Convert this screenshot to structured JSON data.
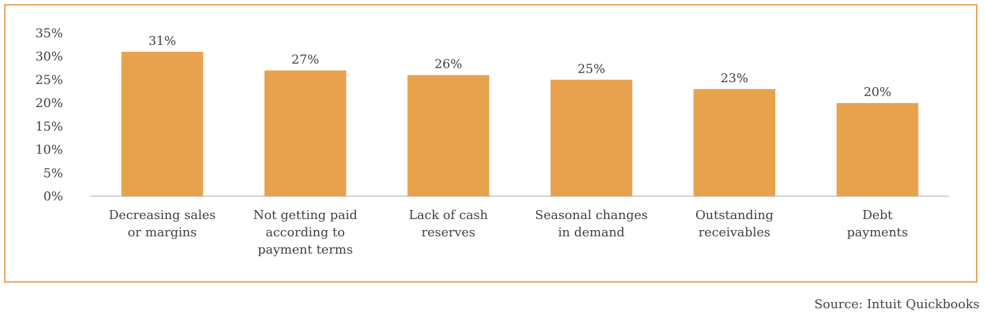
{
  "chart_data": {
    "type": "bar",
    "categories": [
      [
        "Decreasing sales",
        "or margins"
      ],
      [
        "Not getting paid",
        "according to",
        "payment terms"
      ],
      [
        "Lack of cash",
        "reserves"
      ],
      [
        "Seasonal changes",
        "in demand"
      ],
      [
        "Outstanding",
        "receivables"
      ],
      [
        "Debt",
        "payments"
      ]
    ],
    "values": [
      31,
      27,
      26,
      25,
      23,
      20
    ],
    "data_labels": [
      "31%",
      "27%",
      "26%",
      "25%",
      "23%",
      "20%"
    ],
    "y_ticks": [
      "0%",
      "5%",
      "10%",
      "15%",
      "20%",
      "25%",
      "30%",
      "35%"
    ],
    "ylim": [
      0,
      35
    ],
    "grid": false,
    "bar_color": "#E8A24E",
    "axis_color": "#BFBFBF"
  },
  "source": "Source: Intuit Quickbooks",
  "frame_color": "#E8A24E"
}
